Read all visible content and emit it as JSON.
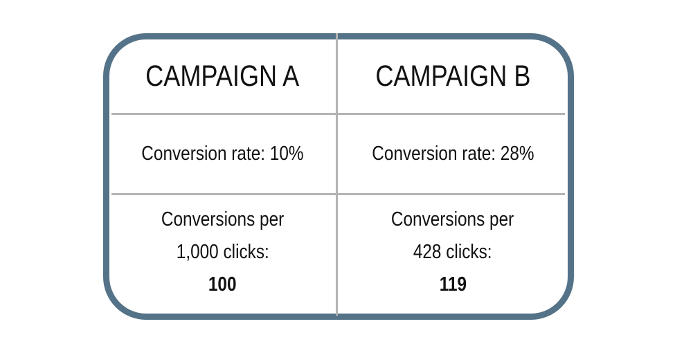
{
  "border_color": "#557388",
  "columns": [
    {
      "title": "CAMPAIGN A",
      "rate": "Conversion rate: 10%",
      "per_label": "Conversions per",
      "clicks": "1,000 clicks:",
      "value": "100"
    },
    {
      "title": "CAMPAIGN B",
      "rate": "Conversion rate: 28%",
      "per_label": "Conversions per",
      "clicks": "428 clicks:",
      "value": "119"
    }
  ]
}
